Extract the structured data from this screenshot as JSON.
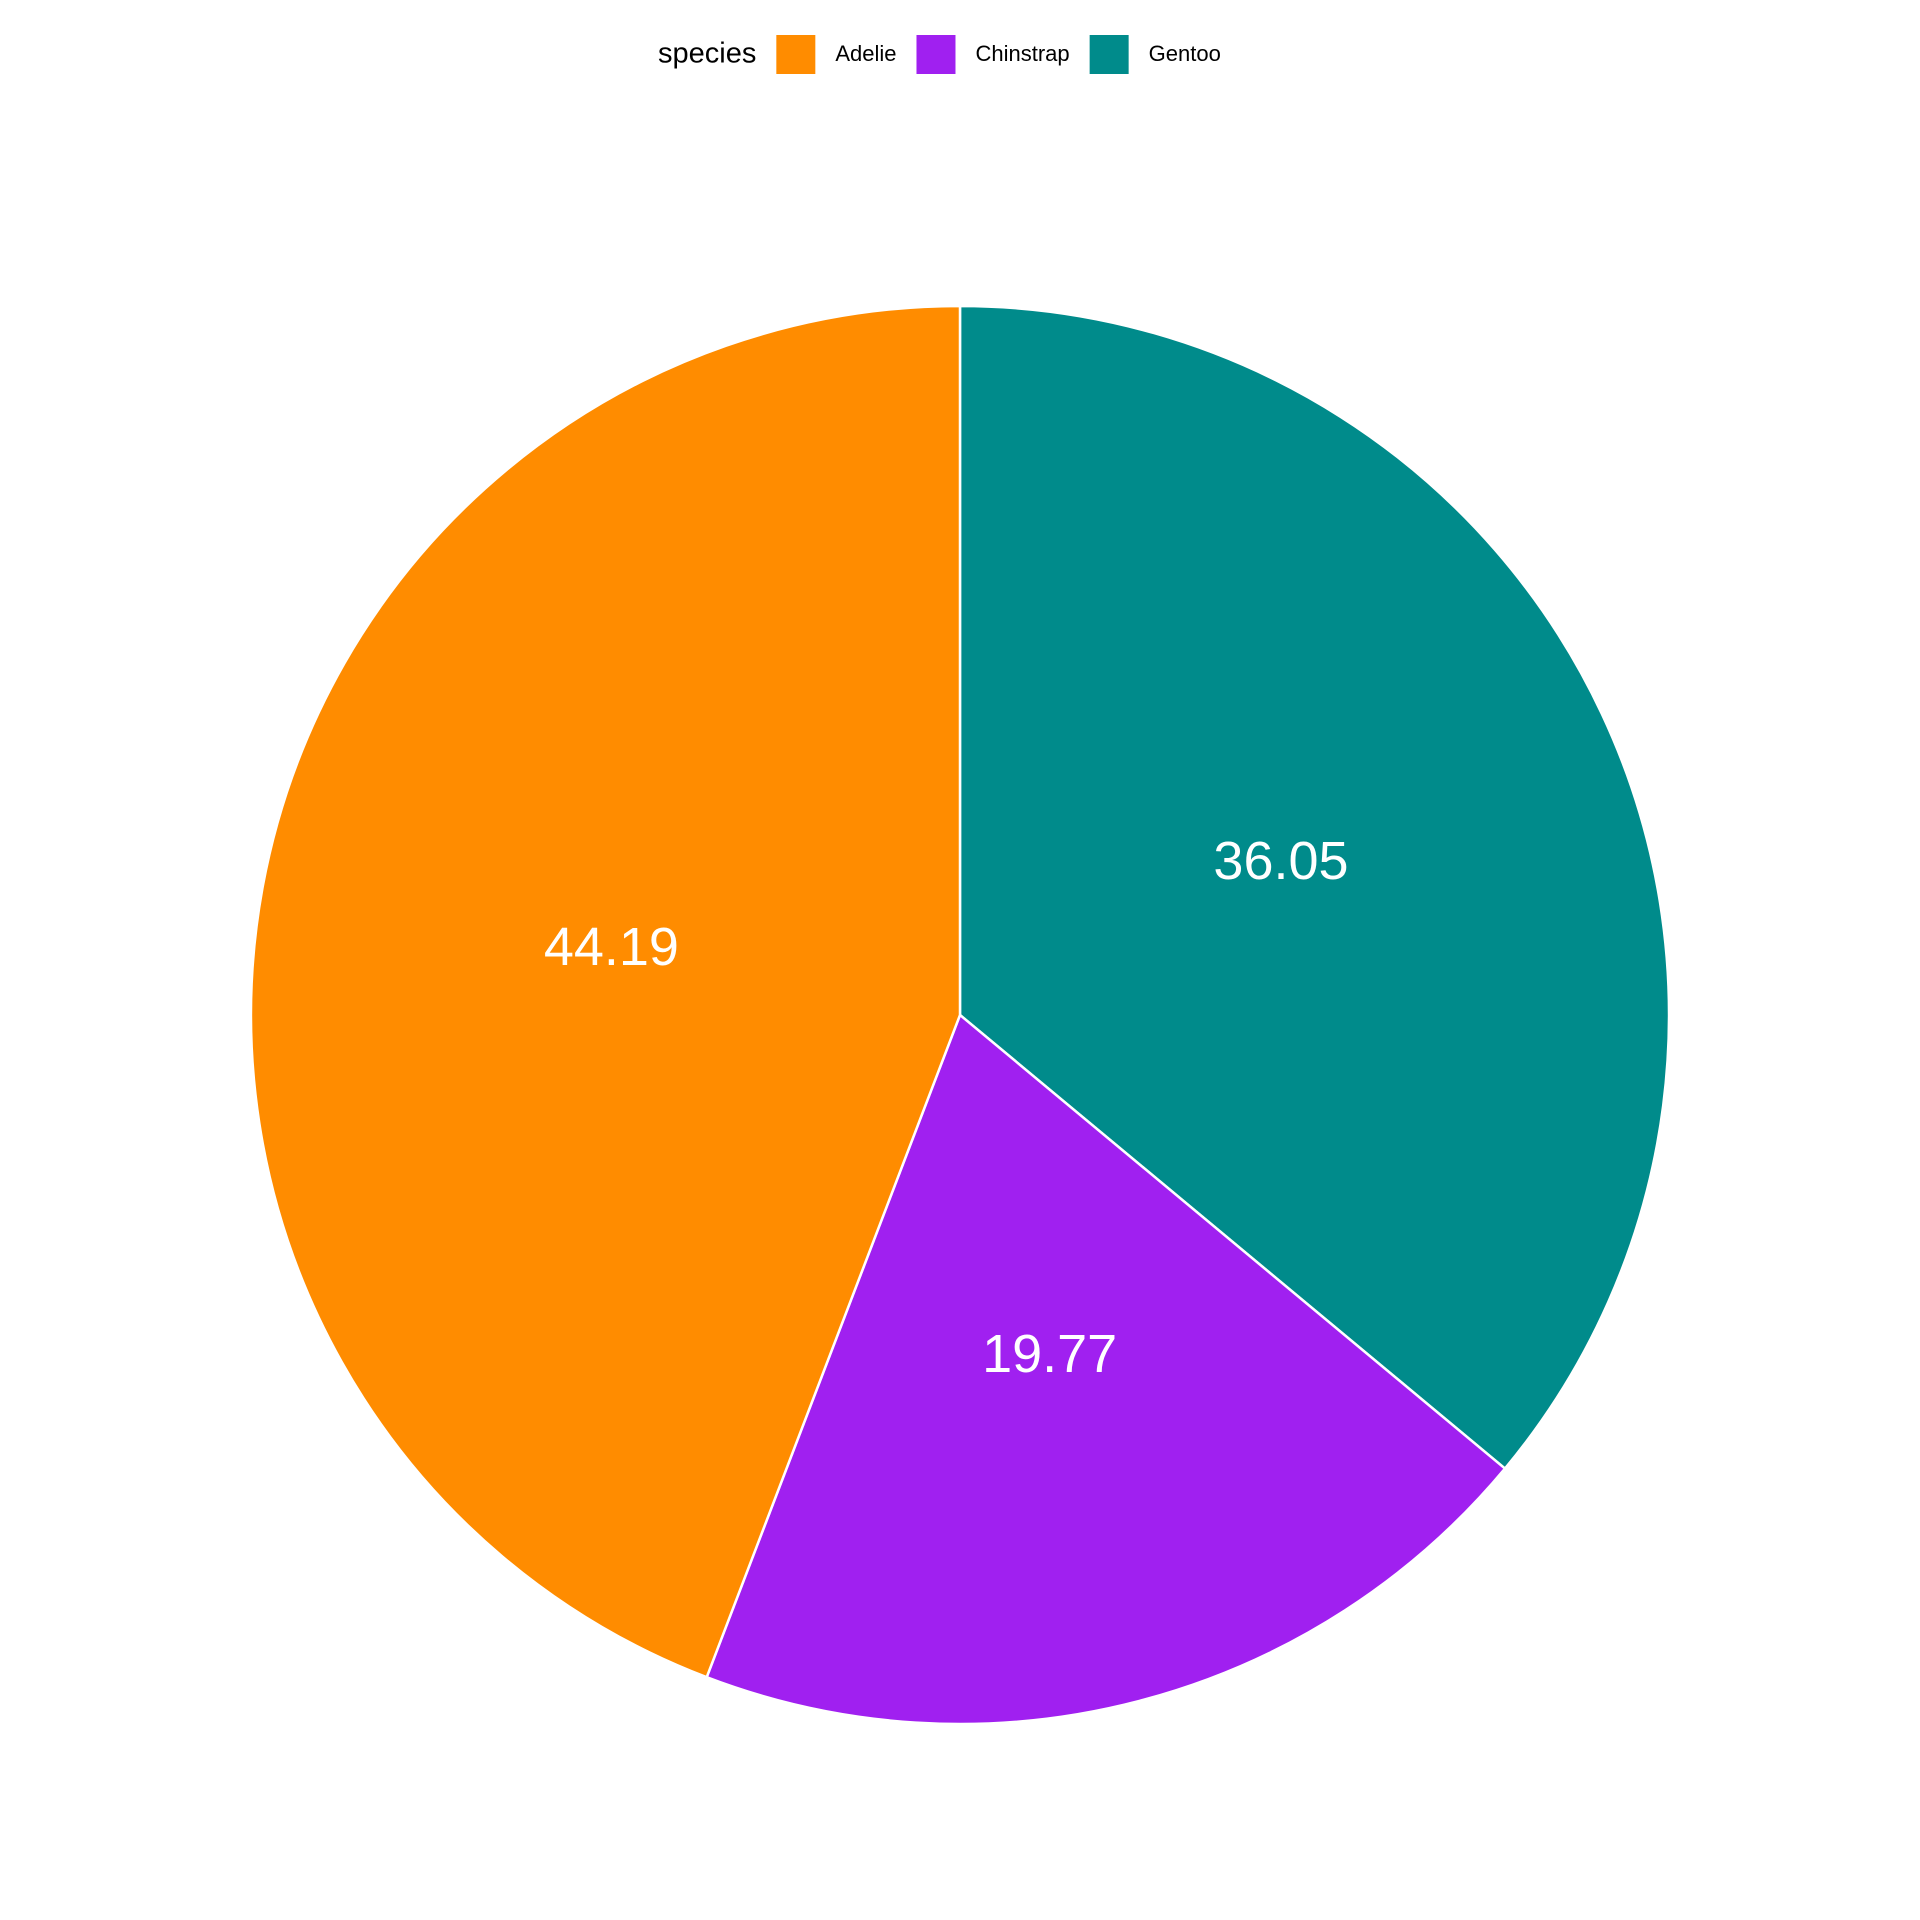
{
  "chart_data": {
    "type": "pie",
    "legend_title": "species",
    "categories": [
      "Adelie",
      "Chinstrap",
      "Gentoo"
    ],
    "values": [
      44.19,
      19.77,
      36.05
    ],
    "colors": [
      "#ff8c00",
      "#a020f0",
      "#008b8b"
    ],
    "legend": "top"
  }
}
